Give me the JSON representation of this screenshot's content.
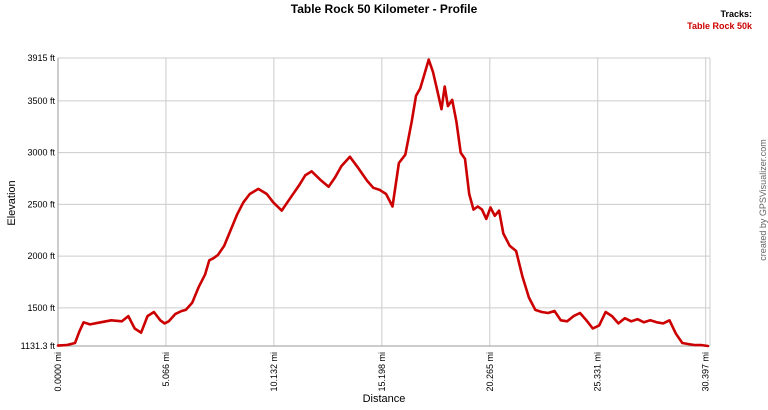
{
  "chart_data": {
    "type": "line",
    "title": "Table Rock 50 Kilometer - Profile",
    "xlabel": "Distance",
    "ylabel": "Elevation",
    "credit": "created by GPSVisualizer.com",
    "legend": {
      "title": "Tracks:",
      "placement": "top-right",
      "entries": [
        "Table Rock 50k"
      ]
    },
    "colors": {
      "series": "#cc0000",
      "grid": "#cccccc",
      "axis": "#999999"
    },
    "grid": true,
    "xlim": [
      0,
      30.6
    ],
    "ylim": [
      1131.3,
      3915
    ],
    "x_ticks": [
      0,
      5.066,
      10.132,
      15.198,
      20.265,
      25.331,
      30.397
    ],
    "x_tick_labels": [
      "0.0000 mi",
      "5.066 mi",
      "10.132 mi",
      "15.198 mi",
      "20.265 mi",
      "25.331 mi",
      "30.397 mi"
    ],
    "y_ticks": [
      1131.3,
      1500,
      2000,
      2500,
      3000,
      3500,
      3915
    ],
    "y_tick_labels": [
      "1131.3 ft",
      "1500 ft",
      "2000 ft",
      "2500 ft",
      "3000 ft",
      "3500 ft",
      "3915 ft"
    ],
    "series": [
      {
        "name": "Table Rock 50k",
        "x": [
          0,
          0.4,
          0.8,
          1.0,
          1.2,
          1.5,
          2.0,
          2.5,
          3.0,
          3.3,
          3.6,
          3.9,
          4.2,
          4.5,
          4.8,
          5.0,
          5.2,
          5.5,
          5.8,
          6.0,
          6.3,
          6.6,
          6.9,
          7.1,
          7.3,
          7.5,
          7.8,
          8.1,
          8.4,
          8.7,
          9.0,
          9.4,
          9.8,
          10.1,
          10.5,
          10.9,
          11.3,
          11.6,
          11.9,
          12.3,
          12.7,
          13.0,
          13.3,
          13.7,
          14.1,
          14.5,
          14.8,
          15.1,
          15.4,
          15.7,
          16.0,
          16.3,
          16.6,
          16.8,
          17.0,
          17.2,
          17.4,
          17.6,
          17.8,
          18.0,
          18.15,
          18.3,
          18.5,
          18.7,
          18.9,
          19.1,
          19.3,
          19.5,
          19.7,
          19.9,
          20.1,
          20.3,
          20.5,
          20.7,
          20.9,
          21.2,
          21.5,
          21.8,
          22.1,
          22.4,
          22.7,
          23.0,
          23.3,
          23.6,
          23.9,
          24.2,
          24.5,
          24.8,
          25.1,
          25.4,
          25.7,
          26.0,
          26.3,
          26.6,
          26.9,
          27.2,
          27.5,
          27.8,
          28.1,
          28.4,
          28.7,
          29.0,
          29.3,
          29.6,
          29.9,
          30.2,
          30.5
        ],
        "y": [
          1135,
          1140,
          1160,
          1270,
          1360,
          1340,
          1360,
          1380,
          1370,
          1420,
          1300,
          1260,
          1420,
          1460,
          1380,
          1350,
          1370,
          1440,
          1470,
          1480,
          1550,
          1700,
          1820,
          1960,
          1980,
          2010,
          2100,
          2250,
          2400,
          2520,
          2600,
          2650,
          2600,
          2520,
          2440,
          2560,
          2680,
          2780,
          2820,
          2740,
          2670,
          2760,
          2870,
          2960,
          2850,
          2730,
          2660,
          2640,
          2600,
          2480,
          2900,
          2980,
          3300,
          3550,
          3620,
          3760,
          3900,
          3780,
          3600,
          3420,
          3640,
          3450,
          3510,
          3300,
          3000,
          2940,
          2600,
          2450,
          2480,
          2450,
          2360,
          2470,
          2390,
          2440,
          2220,
          2100,
          2050,
          1800,
          1600,
          1480,
          1460,
          1450,
          1470,
          1380,
          1370,
          1420,
          1450,
          1380,
          1300,
          1330,
          1460,
          1420,
          1350,
          1400,
          1370,
          1390,
          1360,
          1380,
          1360,
          1350,
          1380,
          1250,
          1160,
          1150,
          1140,
          1140,
          1131.3
        ]
      }
    ]
  }
}
